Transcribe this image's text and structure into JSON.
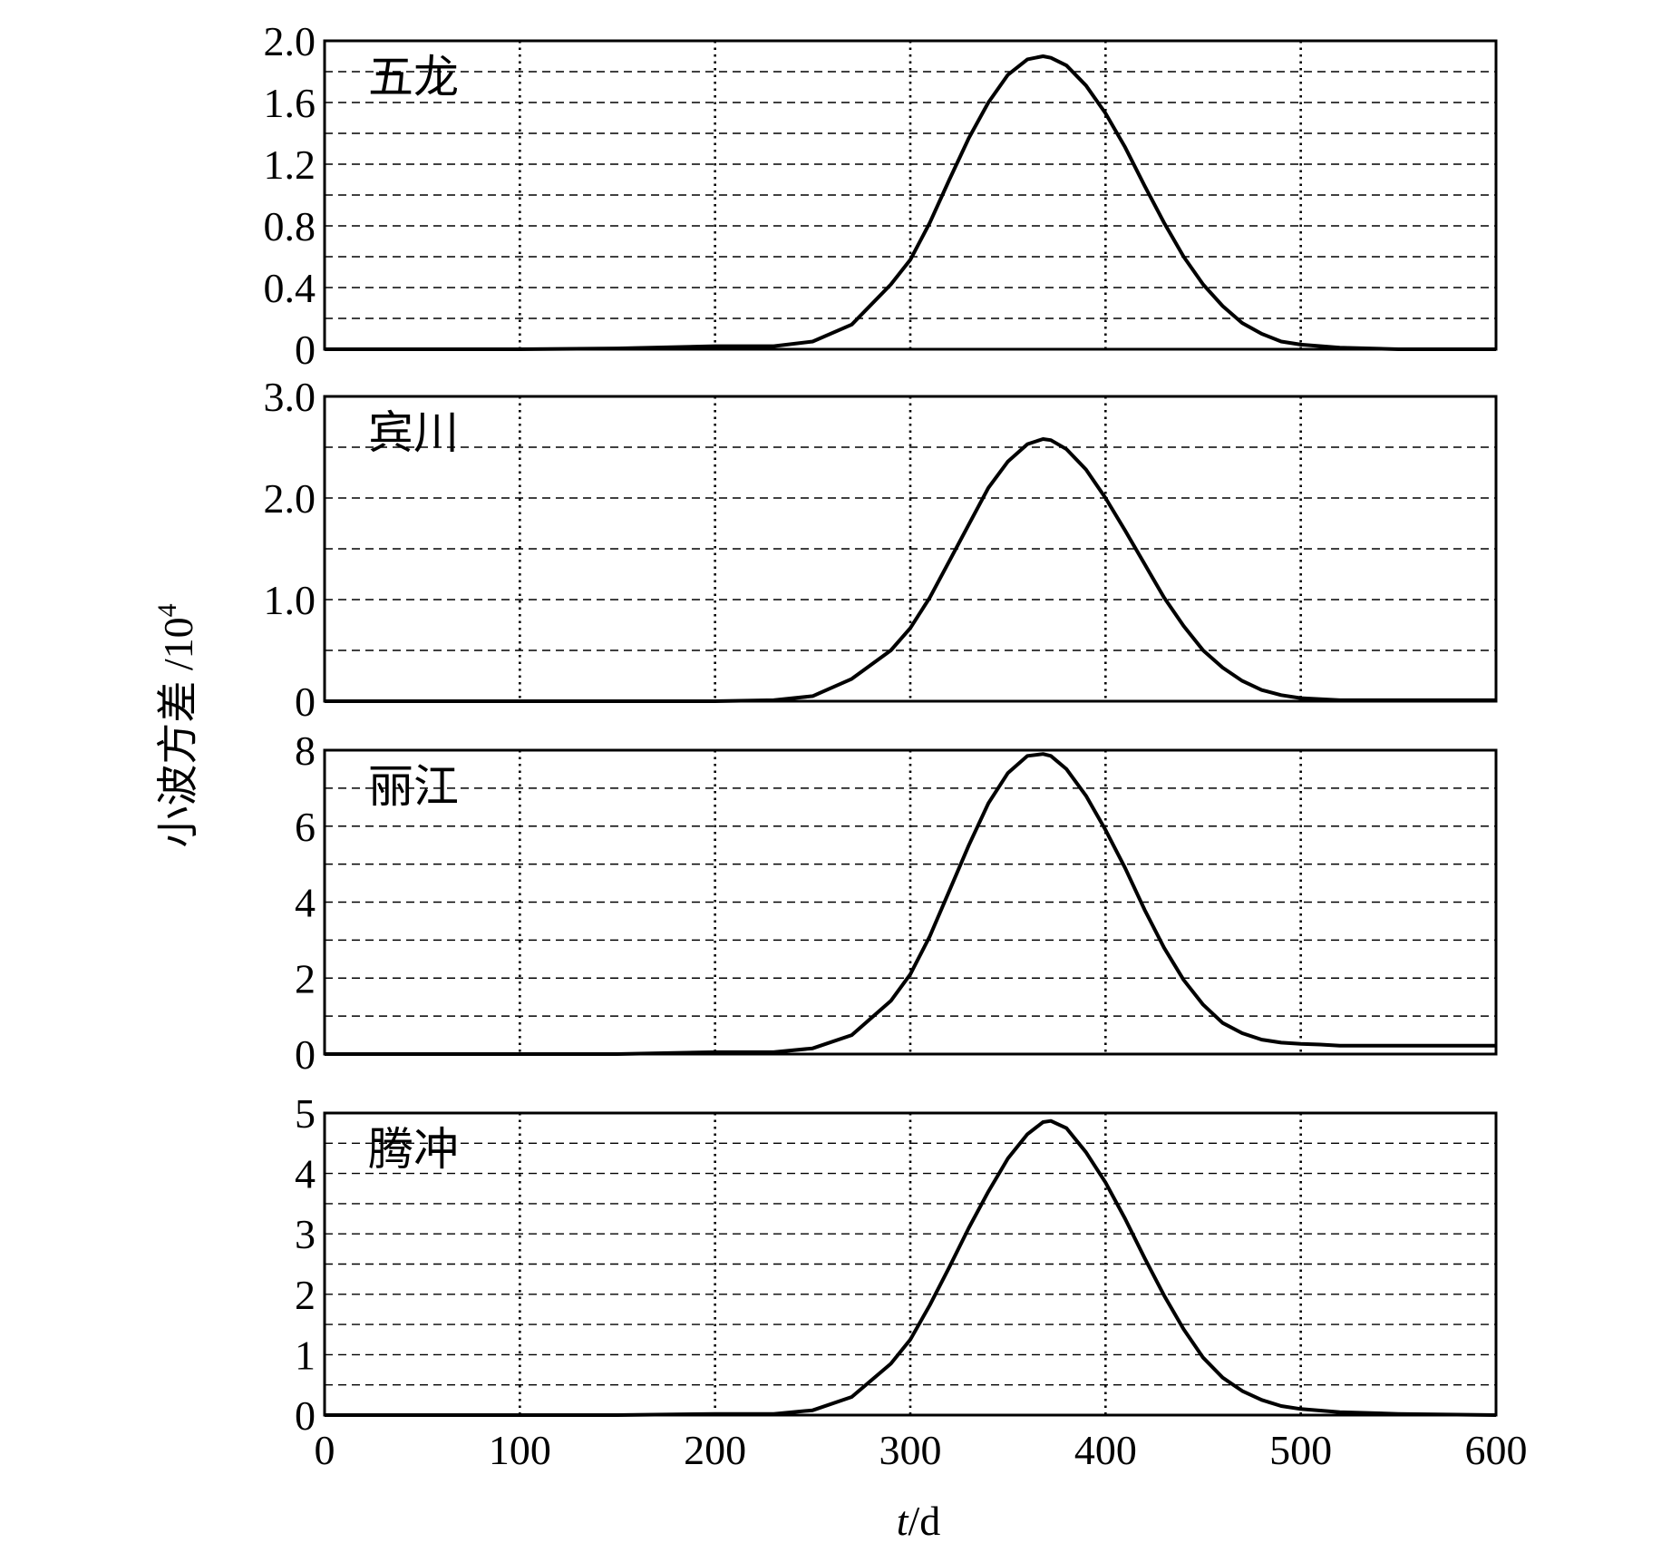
{
  "chart_data": [
    {
      "type": "line",
      "panel_label": "五龙",
      "ylim": [
        0,
        2.0
      ],
      "yticks": [
        0,
        0.4,
        0.8,
        1.2,
        1.6,
        2.0
      ],
      "ytick_labels": [
        "0",
        "0.4",
        "0.8",
        "1.2",
        "1.6",
        "2.0"
      ],
      "yminor": [
        0.2,
        0.6,
        1.0,
        1.4,
        1.8
      ],
      "xlim": [
        0,
        600
      ],
      "xticks": [
        0,
        100,
        200,
        300,
        400,
        500,
        600
      ],
      "series": [
        {
          "x": [
            0,
            100,
            150,
            200,
            230,
            250,
            270,
            290,
            300,
            310,
            320,
            330,
            340,
            350,
            360,
            368,
            372,
            380,
            390,
            400,
            410,
            420,
            430,
            440,
            450,
            460,
            470,
            480,
            490,
            500,
            520,
            550,
            600
          ],
          "y": [
            0,
            0,
            0.005,
            0.02,
            0.02,
            0.05,
            0.16,
            0.42,
            0.58,
            0.82,
            1.1,
            1.37,
            1.6,
            1.78,
            1.88,
            1.9,
            1.89,
            1.84,
            1.71,
            1.53,
            1.31,
            1.06,
            0.82,
            0.6,
            0.42,
            0.28,
            0.17,
            0.1,
            0.05,
            0.03,
            0.01,
            0,
            0
          ]
        }
      ]
    },
    {
      "type": "line",
      "panel_label": "宾川",
      "ylim": [
        0,
        3.0
      ],
      "yticks": [
        0,
        1.0,
        2.0,
        3.0
      ],
      "ytick_labels": [
        "0",
        "1.0",
        "2.0",
        "3.0"
      ],
      "yminor": [
        0.5,
        1.5,
        2.5
      ],
      "xlim": [
        0,
        600
      ],
      "xticks": [
        0,
        100,
        200,
        300,
        400,
        500,
        600
      ],
      "series": [
        {
          "x": [
            0,
            200,
            230,
            250,
            270,
            290,
            300,
            310,
            320,
            330,
            340,
            350,
            360,
            368,
            372,
            380,
            390,
            400,
            410,
            420,
            430,
            440,
            450,
            460,
            470,
            480,
            490,
            500,
            520,
            550,
            600
          ],
          "y": [
            0,
            0,
            0.01,
            0.05,
            0.22,
            0.5,
            0.72,
            1.02,
            1.38,
            1.74,
            2.1,
            2.36,
            2.53,
            2.58,
            2.57,
            2.48,
            2.28,
            2.0,
            1.68,
            1.35,
            1.02,
            0.74,
            0.5,
            0.33,
            0.2,
            0.11,
            0.06,
            0.03,
            0.01,
            0.01,
            0.01
          ]
        }
      ]
    },
    {
      "type": "line",
      "panel_label": "丽江",
      "ylim": [
        0,
        8
      ],
      "yticks": [
        0,
        2,
        4,
        6,
        8
      ],
      "ytick_labels": [
        "0",
        "2",
        "4",
        "6",
        "8"
      ],
      "yminor": [
        1,
        3,
        5,
        7
      ],
      "xlim": [
        0,
        600
      ],
      "xticks": [
        0,
        100,
        200,
        300,
        400,
        500,
        600
      ],
      "series": [
        {
          "x": [
            0,
            150,
            200,
            230,
            250,
            270,
            290,
            300,
            310,
            320,
            330,
            340,
            350,
            360,
            368,
            372,
            380,
            390,
            400,
            410,
            420,
            430,
            440,
            450,
            460,
            470,
            480,
            490,
            500,
            510,
            520,
            550,
            600
          ],
          "y": [
            0,
            0,
            0.05,
            0.05,
            0.15,
            0.5,
            1.4,
            2.1,
            3.1,
            4.3,
            5.5,
            6.6,
            7.4,
            7.85,
            7.9,
            7.85,
            7.5,
            6.8,
            5.9,
            4.9,
            3.8,
            2.8,
            1.95,
            1.3,
            0.82,
            0.55,
            0.38,
            0.3,
            0.27,
            0.25,
            0.22,
            0.22,
            0.22
          ]
        }
      ]
    },
    {
      "type": "line",
      "panel_label": "腾冲",
      "ylim": [
        0,
        5
      ],
      "yticks": [
        0,
        1,
        2,
        3,
        4,
        5
      ],
      "ytick_labels": [
        "0",
        "1",
        "2",
        "3",
        "4",
        "5"
      ],
      "yminor": [
        0.5,
        1.5,
        2.5,
        3.5,
        4.5
      ],
      "xlim": [
        0,
        600
      ],
      "xticks": [
        0,
        100,
        200,
        300,
        400,
        500,
        600
      ],
      "series": [
        {
          "x": [
            0,
            150,
            200,
            230,
            250,
            270,
            290,
            300,
            310,
            320,
            330,
            340,
            350,
            360,
            368,
            372,
            380,
            390,
            400,
            410,
            420,
            430,
            440,
            450,
            460,
            470,
            480,
            490,
            500,
            520,
            550,
            600
          ],
          "y": [
            0,
            0,
            0.02,
            0.02,
            0.08,
            0.3,
            0.85,
            1.25,
            1.82,
            2.45,
            3.1,
            3.7,
            4.25,
            4.65,
            4.85,
            4.87,
            4.75,
            4.35,
            3.85,
            3.25,
            2.6,
            1.98,
            1.42,
            0.95,
            0.62,
            0.4,
            0.25,
            0.15,
            0.1,
            0.05,
            0.02,
            0
          ]
        }
      ]
    }
  ],
  "axes": {
    "ylabel": "小波方差 /10",
    "ylabel_sup": "4",
    "xlabel_italic": "t",
    "xlabel_rest": "/d"
  }
}
